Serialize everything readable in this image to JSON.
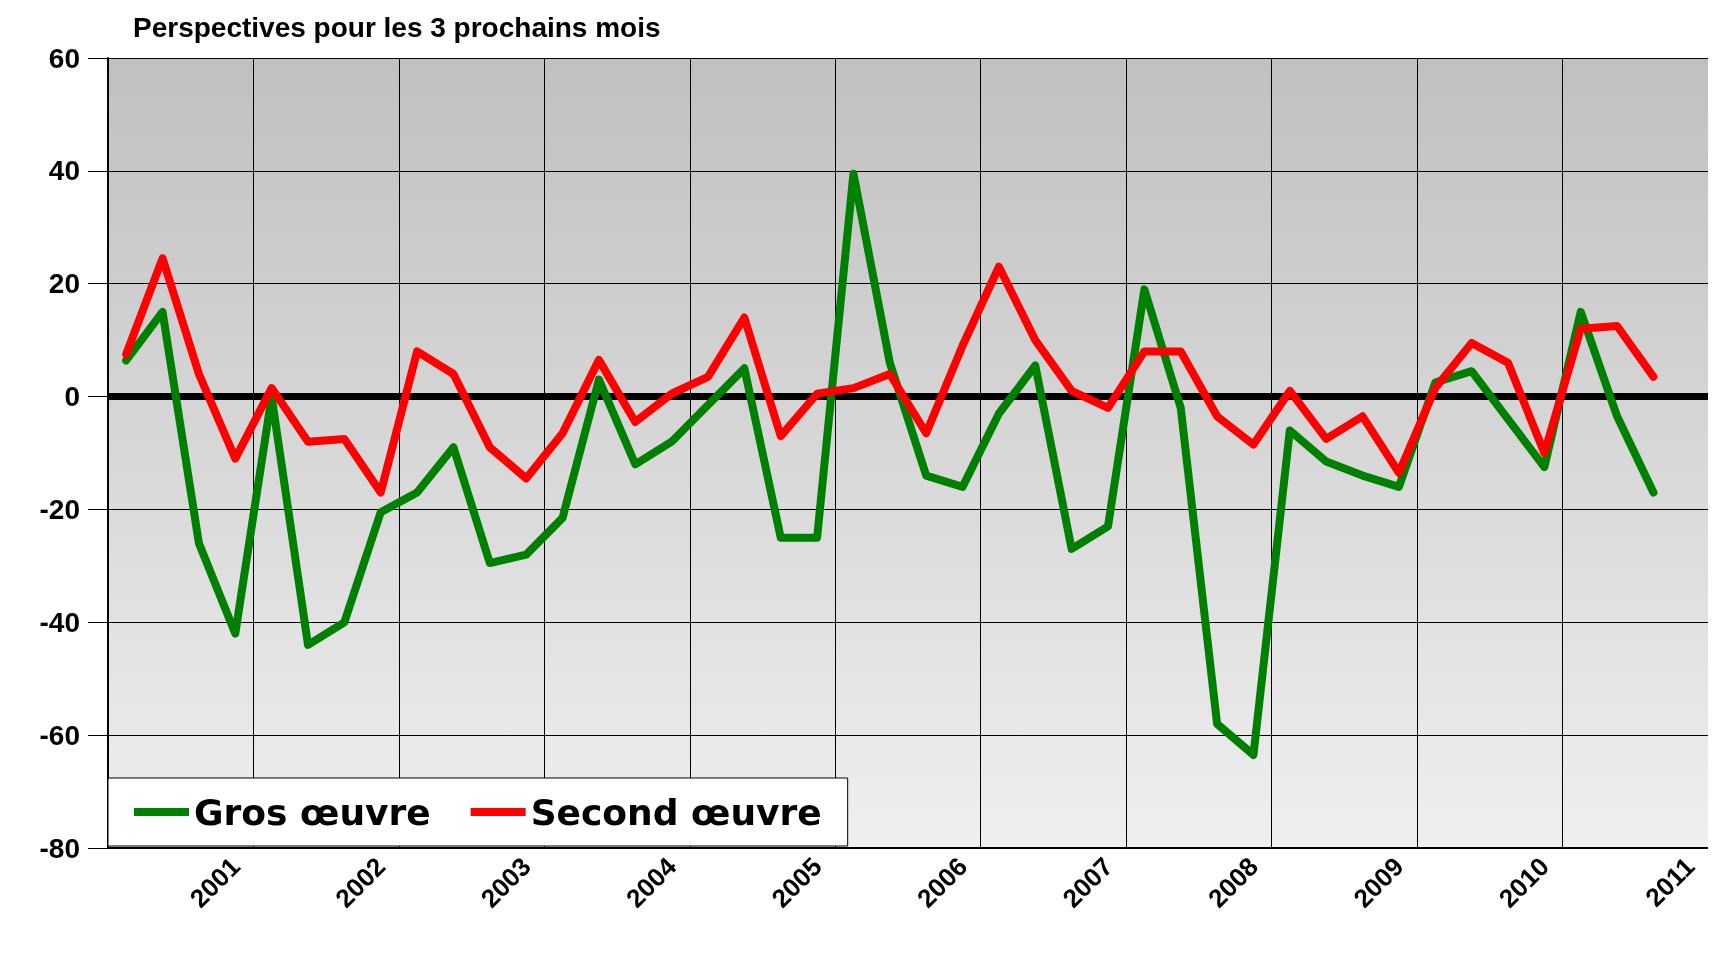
{
  "chart_data": {
    "type": "line",
    "title": "Perspectives pour les 3 prochains mois",
    "categories": [
      null,
      null,
      null,
      "2001",
      null,
      null,
      null,
      "2002",
      null,
      null,
      null,
      "2003",
      null,
      null,
      null,
      "2004",
      null,
      null,
      null,
      "2005",
      null,
      null,
      null,
      "2006",
      null,
      null,
      null,
      "2007",
      null,
      null,
      null,
      "2008",
      null,
      null,
      null,
      "2009",
      null,
      null,
      null,
      "2010",
      null,
      null,
      null,
      "2011"
    ],
    "series": [
      {
        "name": "Gros œuvre",
        "color": "#008000",
        "values": [
          6.4,
          15,
          -26,
          -42,
          0,
          -44,
          -40,
          -20.5,
          -17,
          -9,
          -29.5,
          -28,
          -21.5,
          3,
          -12,
          -8,
          -1.5,
          5,
          -25,
          -25,
          39.5,
          6,
          -14,
          -16,
          -3,
          5.5,
          -27,
          -23,
          19,
          -2,
          -58,
          -63.5,
          -6,
          -11.5,
          -14,
          -16,
          2.5,
          4.5,
          -4,
          -12.5,
          15,
          -3.5,
          -17,
          null
        ]
      },
      {
        "name": "Second œuvre",
        "color": "#ff0000",
        "values": [
          7.5,
          24.5,
          4,
          -11,
          1.5,
          -8,
          -7.5,
          -17,
          8,
          4,
          -9,
          -14.5,
          -6.5,
          6.5,
          -4.5,
          0.5,
          3.5,
          14,
          -7,
          0.5,
          1.5,
          4,
          -6.5,
          9,
          23,
          10,
          1,
          -2,
          8,
          8,
          -3.5,
          -8.5,
          1,
          -7.5,
          -3.5,
          -13.5,
          1.5,
          9.5,
          6,
          -10,
          12,
          12.5,
          3.5,
          null
        ]
      }
    ],
    "ylim": [
      -80,
      60
    ],
    "yticks": [
      -80,
      -60,
      -40,
      -20,
      0,
      20,
      40,
      60
    ],
    "grid": true,
    "legend": "bottom left",
    "line_style": "solid",
    "ref_lines": [
      {
        "axis": "y",
        "value": 0,
        "color": "#000000"
      }
    ]
  }
}
